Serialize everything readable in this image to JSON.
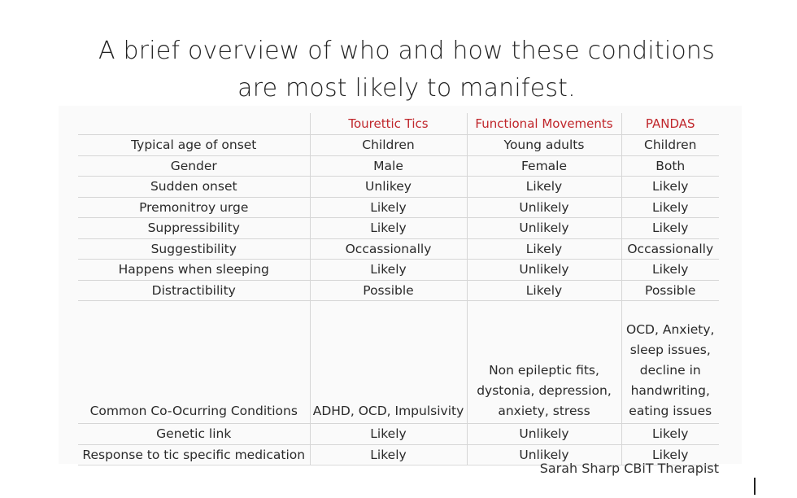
{
  "title": {
    "line1": "A brief overview of who and how these conditions",
    "line2": "are most likely to manifest."
  },
  "table": {
    "headers": [
      "",
      "Tourettic Tics",
      "Functional Movements",
      "PANDAS"
    ],
    "rows": [
      [
        "Typical age of onset",
        "Children",
        "Young adults",
        "Children"
      ],
      [
        "Gender",
        "Male",
        "Female",
        "Both"
      ],
      [
        "Sudden onset",
        "Unlikey",
        "Likely",
        "Likely"
      ],
      [
        "Premonitroy urge",
        "Likely",
        "Unlikely",
        "Likely"
      ],
      [
        "Suppressibility",
        "Likely",
        "Unlikely",
        "Likely"
      ],
      [
        "Suggestibility",
        "Occassionally",
        "Likely",
        "Occassionally"
      ],
      [
        "Happens when sleeping",
        "Likely",
        "Unlikely",
        "Likely"
      ],
      [
        "Distractibility",
        "Possible",
        "Likely",
        "Possible"
      ],
      [
        "Common Co-Ocurring Conditions",
        "ADHD, OCD, Impulsivity",
        "Non epileptic fits, dystonia, depression, anxiety, stress",
        "OCD, Anxiety, sleep issues, decline in handwriting, eating issues"
      ],
      [
        "Genetic link",
        "Likely",
        "Unlikely",
        "Likely"
      ],
      [
        "Response to tic specific medication",
        "Likely",
        "Unlikely",
        "Likely"
      ]
    ]
  },
  "credit": "Sarah Sharp CBiT Therapist",
  "colors": {
    "header_text": "#c0262b",
    "grid_line": "#d6d6d6"
  }
}
